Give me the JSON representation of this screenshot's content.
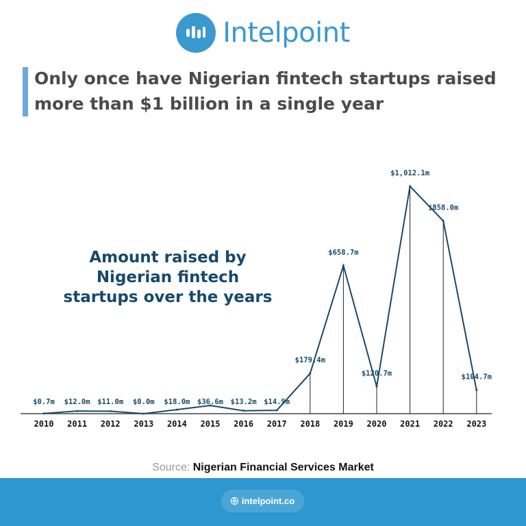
{
  "brand": {
    "name": "Intelpoint",
    "color": "#3a99cf",
    "icon": "bar-chart-icon"
  },
  "headline": "Only once have Nigerian fintech startups raised more than $1 billion in a single year",
  "chart_data": {
    "type": "line",
    "title": "Amount raised by Nigerian fintech startups over the years",
    "x": [
      "2010",
      "2011",
      "2012",
      "2013",
      "2014",
      "2015",
      "2016",
      "2017",
      "2018",
      "2019",
      "2020",
      "2021",
      "2022",
      "2023"
    ],
    "values": [
      0.7,
      12.0,
      11.0,
      0.0,
      18.0,
      36.6,
      13.2,
      14.9,
      179.4,
      658.7,
      120.7,
      1012.1,
      858.0,
      104.7
    ],
    "labels": [
      "$0.7m",
      "$12.0m",
      "$11.0m",
      "$0.0m",
      "$18.0m",
      "$36.6m",
      "$13.2m",
      "$14.9m",
      "$179.4m",
      "$658.7m",
      "$120.7m",
      "$1,012.1m",
      "$858.0m",
      "$104.7m"
    ],
    "line_color": "#17496b",
    "drop_lines_from": "2018"
  },
  "source": {
    "label": "Source:",
    "text": "Nigerian Financial Services Market"
  },
  "footer": {
    "url": "intelpoint.co",
    "icon": "globe-icon",
    "color": "#2f97d0"
  }
}
